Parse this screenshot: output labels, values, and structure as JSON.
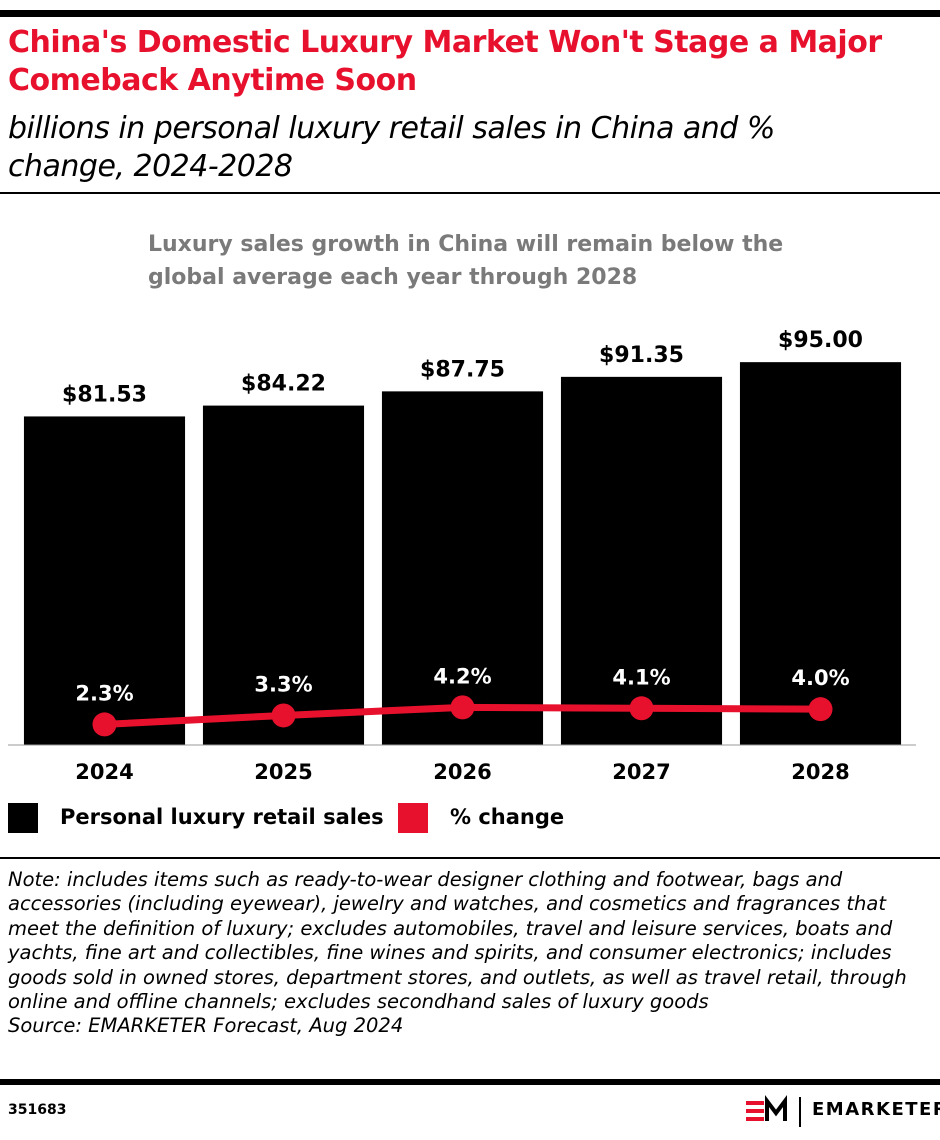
{
  "chart_data": {
    "type": "bar_line",
    "title": "China's Domestic Luxury Market Won't Stage a Major Comeback Anytime Soon",
    "subtitle": "billions in personal luxury retail sales in China and % change, 2024-2028",
    "annotation": "Luxury sales growth in China will remain below the global average each year through 2028",
    "categories": [
      "2024",
      "2025",
      "2026",
      "2027",
      "2028"
    ],
    "series": [
      {
        "name": "Personal luxury retail sales",
        "color": "#000000",
        "type": "bar",
        "axis": "y",
        "values": [
          81.53,
          84.22,
          87.75,
          91.35,
          95.0
        ],
        "value_labels": [
          "$81.53",
          "$84.22",
          "$87.75",
          "$91.35",
          "$95.00"
        ]
      },
      {
        "name": "% change",
        "color": "#e8112d",
        "type": "line",
        "axis": "y2",
        "values": [
          2.3,
          3.3,
          4.2,
          4.1,
          4.0
        ],
        "value_labels": [
          "2.3%",
          "3.3%",
          "4.2%",
          "4.1%",
          "4.0%"
        ]
      }
    ],
    "ylim": [
      0,
      100
    ],
    "y2lim": [
      0,
      45
    ],
    "grid": false,
    "legend": "bottom-left",
    "note": "Note: includes items such as ready-to-wear designer clothing and footwear, bags and accessories (including eyewear), jewelry and watches, and cosmetics and fragrances that meet the definition of luxury; excludes automobiles, travel and leisure services, boats and yachts, fine art and collectibles, fine wines and spirits, and consumer electronics; includes goods sold in owned stores, department stores, and outlets, as well as travel retail, through online and offline channels; excludes secondhand sales of luxury goods",
    "source": "Source: EMARKETER Forecast, Aug 2024"
  },
  "footer": {
    "id": "351683",
    "brand": "EMARKETER"
  }
}
